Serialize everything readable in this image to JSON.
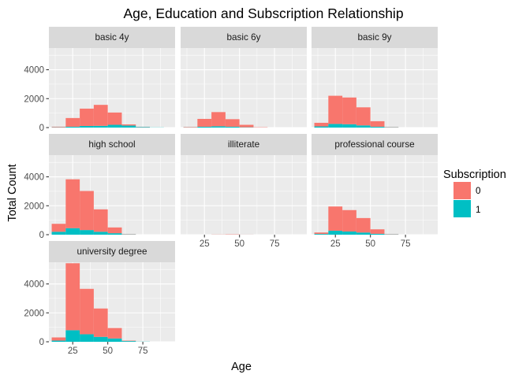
{
  "chart_data": {
    "type": "bar",
    "title": "Age, Education and Subscription Relationship",
    "xlabel": "Age",
    "ylabel": "Total Count",
    "xlim": [
      8,
      98
    ],
    "ylim": [
      0,
      5500
    ],
    "x_ticks": [
      25,
      50,
      75
    ],
    "y_ticks": [
      0,
      2000,
      4000
    ],
    "grid": true,
    "stacked": true,
    "bins": [
      [
        10,
        20
      ],
      [
        20,
        30
      ],
      [
        30,
        40
      ],
      [
        40,
        50
      ],
      [
        50,
        60
      ],
      [
        60,
        70
      ],
      [
        70,
        80
      ],
      [
        80,
        90
      ],
      [
        90,
        100
      ]
    ],
    "legend": {
      "title": "Subscription",
      "position": "right",
      "entries": [
        {
          "label": "0",
          "color": "#F8766D"
        },
        {
          "label": "1",
          "color": "#00BFC4"
        }
      ]
    },
    "colors": {
      "0": "#F8766D",
      "1": "#00BFC4"
    },
    "facets": [
      {
        "label": "basic 4y",
        "series": [
          {
            "subscription": "0",
            "values": [
              40,
              600,
              1200,
              1450,
              850,
              80,
              15,
              0,
              0
            ]
          },
          {
            "subscription": "1",
            "values": [
              20,
              60,
              110,
              120,
              190,
              140,
              40,
              10,
              0
            ]
          }
        ]
      },
      {
        "label": "basic 6y",
        "series": [
          {
            "subscription": "0",
            "values": [
              30,
              540,
              980,
              520,
              170,
              20,
              0,
              0,
              0
            ]
          },
          {
            "subscription": "1",
            "values": [
              15,
              60,
              90,
              60,
              20,
              0,
              0,
              0,
              0
            ]
          }
        ]
      },
      {
        "label": "basic 9y",
        "series": [
          {
            "subscription": "0",
            "values": [
              250,
              1950,
              1850,
              1250,
              380,
              20,
              0,
              0,
              0
            ]
          },
          {
            "subscription": "1",
            "values": [
              80,
              250,
              230,
              150,
              60,
              20,
              0,
              0,
              0
            ]
          }
        ]
      },
      {
        "label": "high school",
        "series": [
          {
            "subscription": "0",
            "values": [
              550,
              3380,
              2700,
              1550,
              400,
              20,
              0,
              0,
              0
            ]
          },
          {
            "subscription": "1",
            "values": [
              200,
              450,
              320,
              200,
              100,
              20,
              0,
              0,
              0
            ]
          }
        ]
      },
      {
        "label": "illiterate",
        "series": [
          {
            "subscription": "0",
            "values": [
              0,
              0,
              10,
              20,
              5,
              0,
              0,
              0,
              0
            ]
          },
          {
            "subscription": "1",
            "values": [
              0,
              0,
              2,
              2,
              2,
              0,
              0,
              0,
              0
            ]
          }
        ]
      },
      {
        "label": "professional course",
        "series": [
          {
            "subscription": "0",
            "values": [
              100,
              1680,
              1480,
              1000,
              310,
              20,
              0,
              0,
              0
            ]
          },
          {
            "subscription": "1",
            "values": [
              50,
              270,
              220,
              150,
              60,
              20,
              0,
              0,
              0
            ]
          }
        ]
      },
      {
        "label": "university degree",
        "series": [
          {
            "subscription": "0",
            "values": [
              220,
              4630,
              3140,
              1960,
              720,
              30,
              0,
              0,
              0
            ]
          },
          {
            "subscription": "1",
            "values": [
              80,
              800,
              520,
              340,
              230,
              50,
              10,
              0,
              0
            ]
          }
        ]
      }
    ]
  }
}
